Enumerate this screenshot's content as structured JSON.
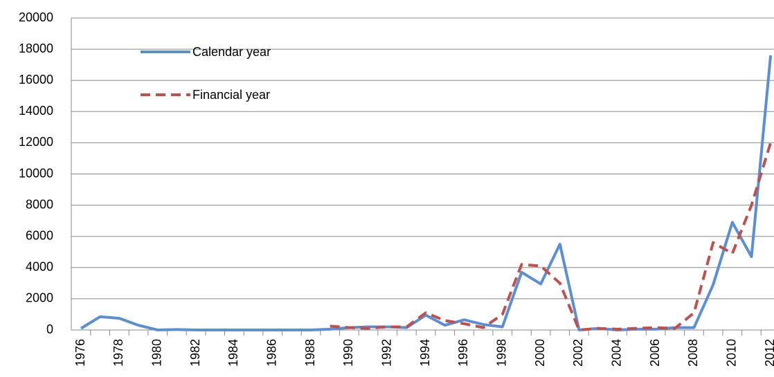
{
  "chart_data": {
    "type": "line",
    "categories": [
      "1976",
      null,
      "1978",
      null,
      "1980",
      null,
      "1982",
      null,
      "1984",
      null,
      "1986",
      null,
      "1988",
      null,
      "1990",
      null,
      "1992",
      null,
      "1994",
      null,
      "1996",
      null,
      "1998",
      null,
      "2000",
      null,
      "2002",
      null,
      "2004",
      null,
      "2006",
      null,
      "2008",
      null,
      "2010",
      null,
      "2012"
    ],
    "series": [
      {
        "name": "Calendar year",
        "color": "#5a8fd6",
        "style": "solid",
        "values": [
          100,
          850,
          750,
          300,
          0,
          30,
          0,
          0,
          0,
          0,
          0,
          0,
          0,
          50,
          150,
          200,
          200,
          150,
          950,
          300,
          650,
          350,
          200,
          3700,
          2950,
          5500,
          0,
          100,
          0,
          50,
          50,
          150,
          150,
          2900,
          6900,
          4700,
          17600
        ]
      },
      {
        "name": "Financial year",
        "color": "#c0504d",
        "style": "dashed",
        "values": [
          null,
          null,
          null,
          null,
          null,
          null,
          null,
          null,
          null,
          null,
          null,
          null,
          null,
          250,
          150,
          100,
          200,
          200,
          1100,
          600,
          400,
          150,
          1000,
          4200,
          4100,
          3000,
          0,
          100,
          50,
          100,
          150,
          100,
          1100,
          5600,
          4900,
          8000,
          12000
        ]
      }
    ],
    "ylim": [
      0,
      20000
    ],
    "yticks": [
      0,
      2000,
      4000,
      6000,
      8000,
      10000,
      12000,
      14000,
      16000,
      18000,
      20000
    ],
    "grid": true,
    "legend": "upper-left"
  }
}
